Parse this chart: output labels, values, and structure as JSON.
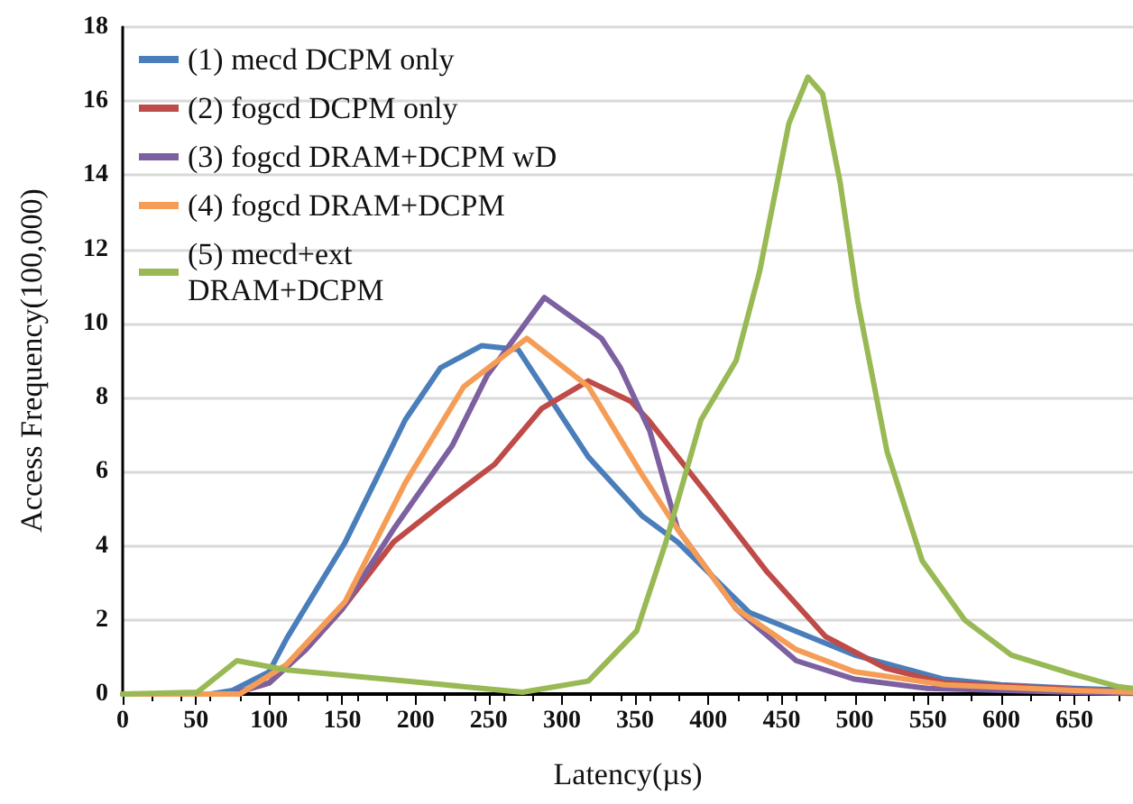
{
  "chart_data": {
    "type": "line",
    "xlabel": "Latency(µs)",
    "ylabel": "Access Frequency(100,000)",
    "xlim": [
      0,
      690
    ],
    "xticks": [
      0,
      50,
      100,
      150,
      200,
      250,
      300,
      350,
      400,
      450,
      500,
      550,
      600,
      650
    ],
    "ylim": [
      0,
      18
    ],
    "yticks": [
      0,
      2,
      4,
      6,
      8,
      10,
      12,
      14,
      16,
      18
    ],
    "grid": "y",
    "legend": "top left",
    "marker": "none",
    "line_style": "solid",
    "series": [
      {
        "name": "(1) mecd DCPM only",
        "color": "#4a7ebb",
        "x": [
          0,
          60,
          75,
          100,
          112,
          152,
          193,
          217,
          245,
          270,
          318,
          355,
          379,
          428,
          500,
          561,
          600,
          650,
          690
        ],
        "values": [
          0,
          0,
          0.1,
          0.6,
          1.5,
          4.1,
          7.4,
          8.8,
          9.4,
          9.3,
          6.4,
          4.8,
          4.1,
          2.2,
          1.05,
          0.4,
          0.25,
          0.15,
          0.1
        ]
      },
      {
        "name": "(2) fogcd DCPM only",
        "color": "#be4b48",
        "x": [
          0,
          75,
          100,
          125,
          150,
          185,
          217,
          254,
          286,
          318,
          347,
          359,
          399,
          440,
          480,
          521,
          561,
          650,
          690
        ],
        "values": [
          0,
          0,
          0.3,
          1.2,
          2.3,
          4.1,
          5.1,
          6.2,
          7.7,
          8.45,
          7.9,
          7.4,
          5.4,
          3.3,
          1.55,
          0.7,
          0.3,
          0.12,
          0.05
        ]
      },
      {
        "name": "(3) fogcd DRAM+DCPM wD",
        "color": "#7d60a0",
        "x": [
          0,
          75,
          100,
          125,
          150,
          185,
          225,
          249,
          288,
          327,
          340,
          360,
          379,
          419,
          460,
          500,
          550,
          650,
          690
        ],
        "values": [
          0,
          0,
          0.3,
          1.2,
          2.3,
          4.45,
          6.7,
          8.6,
          10.7,
          9.6,
          8.8,
          7.1,
          4.45,
          2.3,
          0.9,
          0.4,
          0.15,
          0.05,
          0.02
        ]
      },
      {
        "name": "(4) fogcd DRAM+DCPM",
        "color": "#f59d56",
        "x": [
          0,
          80,
          112,
          152,
          193,
          233,
          276,
          318,
          355,
          379,
          419,
          460,
          500,
          561,
          650,
          690
        ],
        "values": [
          0,
          0,
          0.8,
          2.5,
          5.7,
          8.3,
          9.6,
          8.3,
          5.9,
          4.45,
          2.3,
          1.2,
          0.6,
          0.25,
          0.1,
          0.05
        ]
      },
      {
        "name": "(5) mecd+ext\nDRAM+DCPM",
        "color": "#98b954",
        "x": [
          0,
          51,
          78,
          112,
          193,
          273,
          318,
          351,
          371,
          395,
          419,
          435,
          455,
          468,
          478,
          490,
          502,
          522,
          546,
          575,
          607,
          648,
          680,
          690
        ],
        "values": [
          0,
          0.05,
          0.9,
          0.65,
          0.35,
          0.05,
          0.35,
          1.7,
          4.1,
          7.4,
          9.0,
          11.4,
          15.4,
          16.65,
          16.2,
          13.8,
          10.6,
          6.55,
          3.6,
          2.0,
          1.05,
          0.55,
          0.2,
          0.15
        ]
      }
    ]
  }
}
